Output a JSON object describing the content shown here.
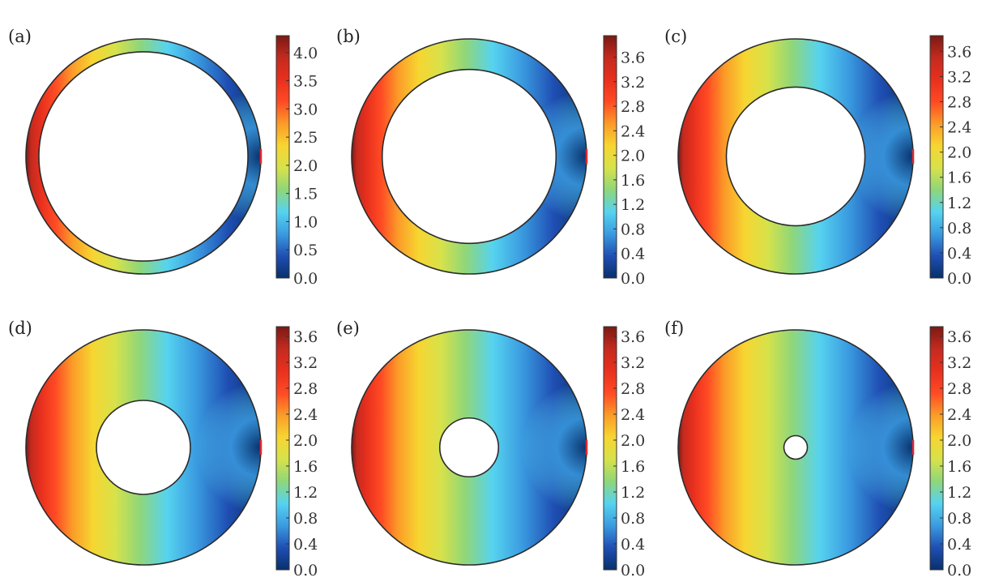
{
  "colormap": [
    "#08306b",
    "#1f4fb4",
    "#3a9be0",
    "#56d3f0",
    "#8fd67a",
    "#d7e24a",
    "#f7d531",
    "#fb9b28",
    "#ff4a24",
    "#e8301e",
    "#c42a1f",
    "#7a1a13"
  ],
  "electrode_color": "#e8262a",
  "chart_data": [
    {
      "type": "heatmap",
      "label": "(a)",
      "inner_radius_ratio": 0.89,
      "vmin": 0.0,
      "vmax": 4.3,
      "ticks": [
        "0.0",
        "0.5",
        "1.0",
        "1.5",
        "2.0",
        "2.5",
        "3.0",
        "3.5",
        "4.0"
      ]
    },
    {
      "type": "heatmap",
      "label": "(b)",
      "inner_radius_ratio": 0.74,
      "vmin": 0.0,
      "vmax": 3.95,
      "ticks": [
        "0.0",
        "0.4",
        "0.8",
        "1.2",
        "1.6",
        "2.0",
        "2.4",
        "2.8",
        "3.2",
        "3.6"
      ]
    },
    {
      "type": "heatmap",
      "label": "(c)",
      "inner_radius_ratio": 0.59,
      "vmin": 0.0,
      "vmax": 3.85,
      "ticks": [
        "0.0",
        "0.4",
        "0.8",
        "1.2",
        "1.6",
        "2.0",
        "2.4",
        "2.8",
        "3.2",
        "3.6"
      ]
    },
    {
      "type": "heatmap",
      "label": "(d)",
      "inner_radius_ratio": 0.4,
      "vmin": 0.0,
      "vmax": 3.75,
      "ticks": [
        "0.0",
        "0.4",
        "0.8",
        "1.2",
        "1.6",
        "2.0",
        "2.4",
        "2.8",
        "3.2",
        "3.6"
      ]
    },
    {
      "type": "heatmap",
      "label": "(e)",
      "inner_radius_ratio": 0.25,
      "vmin": 0.0,
      "vmax": 3.75,
      "ticks": [
        "0.0",
        "0.4",
        "0.8",
        "1.2",
        "1.6",
        "2.0",
        "2.4",
        "2.8",
        "3.2",
        "3.6"
      ]
    },
    {
      "type": "heatmap",
      "label": "(f)",
      "inner_radius_ratio": 0.1,
      "vmin": 0.0,
      "vmax": 3.75,
      "ticks": [
        "0.0",
        "0.4",
        "0.8",
        "1.2",
        "1.6",
        "2.0",
        "2.4",
        "2.8",
        "3.2",
        "3.6"
      ]
    }
  ]
}
